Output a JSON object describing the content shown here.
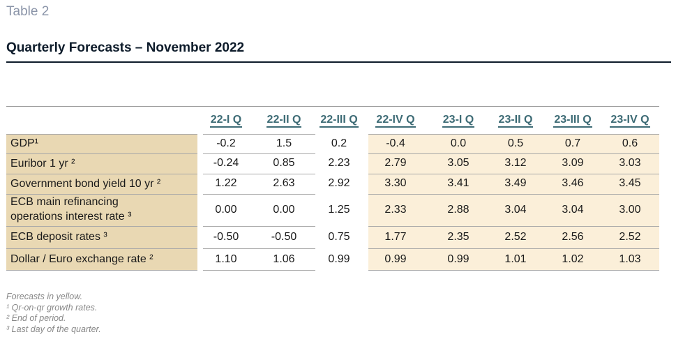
{
  "table_label": "Table 2",
  "title": "Quarterly Forecasts – November 2022",
  "columns": [
    "22-I Q",
    "22-II Q",
    "22-III Q",
    "22-IV Q",
    "23-I Q",
    "23-II Q",
    "23-III Q",
    "23-IV Q"
  ],
  "rows": [
    {
      "label": "GDP¹",
      "values": [
        "-0.2",
        "1.5",
        "0.2",
        "-0.4",
        "0.0",
        "0.5",
        "0.7",
        "0.6"
      ]
    },
    {
      "label": "Euribor 1 yr ²",
      "values": [
        "-0.24",
        "0.85",
        "2.23",
        "2.79",
        "3.05",
        "3.12",
        "3.09",
        "3.03"
      ]
    },
    {
      "label": "Government bond yield 10 yr ²",
      "values": [
        "1.22",
        "2.63",
        "2.92",
        "3.30",
        "3.41",
        "3.49",
        "3.46",
        "3.45"
      ]
    },
    {
      "label_line1": "ECB main refinancing",
      "label_line2": "operations interest rate ³",
      "values": [
        "0.00",
        "0.00",
        "1.25",
        "2.33",
        "2.88",
        "3.04",
        "3.04",
        "3.00"
      ]
    },
    {
      "label": "ECB deposit rates ³",
      "values": [
        "-0.50",
        "-0.50",
        "0.75",
        "1.77",
        "2.35",
        "2.52",
        "2.56",
        "2.52"
      ]
    },
    {
      "label": "Dollar / Euro exchange rate ²",
      "values": [
        "1.10",
        "1.06",
        "0.99",
        "0.99",
        "0.99",
        "1.01",
        "1.02",
        "1.03"
      ]
    }
  ],
  "notes": [
    "Forecasts in yellow.",
    "¹  Qr-on-qr growth rates.",
    "²  End of period.",
    "³  Last day of the quarter."
  ],
  "colors": {
    "label_bg": "#e9d8b3",
    "forecast_bg": "#fbefd9",
    "header": "#3d6b75",
    "title": "#0d1b2a"
  }
}
